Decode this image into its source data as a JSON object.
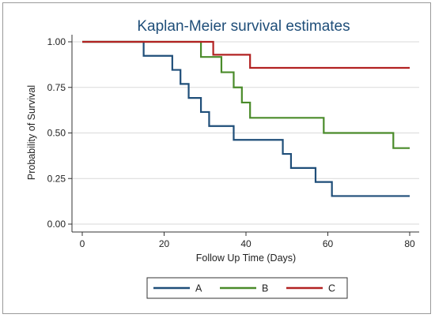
{
  "chart_data": {
    "type": "line",
    "step": true,
    "title": "Kaplan-Meier survival estimates",
    "xlabel": "Follow Up Time (Days)",
    "ylabel": "Probability of Survival",
    "xlim": [
      0,
      80
    ],
    "ylim": [
      0,
      1
    ],
    "xticks": [
      0,
      20,
      40,
      60,
      80
    ],
    "yticks": [
      "0.00",
      "0.25",
      "0.50",
      "0.75",
      "1.00"
    ],
    "grid": "horizontal",
    "legend_position": "bottom",
    "series": [
      {
        "name": "A",
        "color": "#1f4e79",
        "x": [
          0,
          15,
          22,
          24,
          26,
          29,
          30,
          31,
          37,
          49,
          51,
          57,
          61,
          80
        ],
        "y": [
          1.0,
          0.923,
          0.846,
          0.769,
          0.692,
          0.615,
          0.615,
          0.538,
          0.462,
          0.385,
          0.308,
          0.231,
          0.154,
          0.154
        ]
      },
      {
        "name": "B",
        "color": "#4a8b2a",
        "x": [
          0,
          29,
          34,
          37,
          39,
          41,
          59,
          76,
          80
        ],
        "y": [
          1.0,
          0.917,
          0.833,
          0.75,
          0.667,
          0.583,
          0.5,
          0.417,
          0.417
        ]
      },
      {
        "name": "C",
        "color": "#b22222",
        "x": [
          0,
          32,
          41,
          80
        ],
        "y": [
          1.0,
          0.929,
          0.857,
          0.857
        ]
      }
    ]
  }
}
